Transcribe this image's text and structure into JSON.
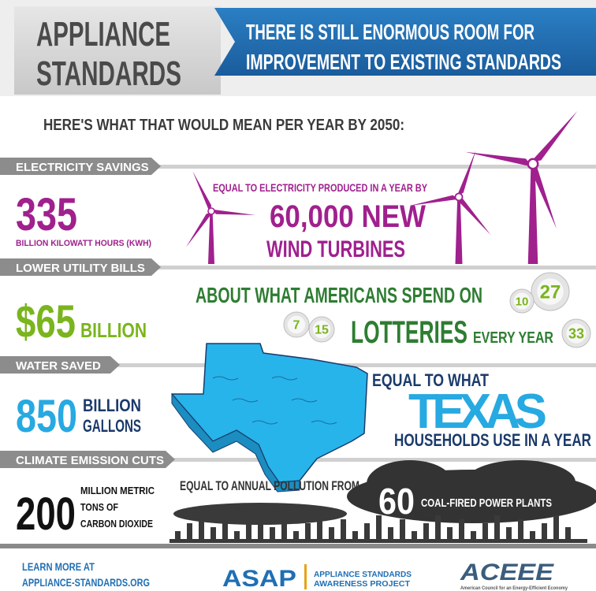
{
  "header": {
    "title_lines": [
      "APPLIANCE",
      "STANDARDS"
    ],
    "banner_lines": [
      "THERE IS STILL ENORMOUS ROOM FOR",
      "IMPROVEMENT TO EXISTING STANDARDS"
    ]
  },
  "intro": "HERE'S WHAT THAT WOULD MEAN PER YEAR BY 2050:",
  "sections": [
    {
      "label": "ELECTRICITY SAVINGS",
      "amount": "335",
      "unit": [
        "BILLION KILOWATT HOURS (KWH)"
      ],
      "comparison": [
        "EQUAL TO ELECTRICITY PRODUCED IN A YEAR BY",
        "60,000 NEW",
        "WIND TURBINES"
      ]
    },
    {
      "label": "LOWER UTILITY BILLS",
      "amount": "$65",
      "unit": [
        "BILLION"
      ],
      "comparison": [
        "ABOUT WHAT AMERICANS SPEND ON",
        "LOTTERIES",
        "EVERY YEAR"
      ],
      "balls": [
        "27",
        "10",
        "7",
        "15",
        "33"
      ]
    },
    {
      "label": "WATER SAVED",
      "amount": "850",
      "unit": [
        "BILLION",
        "GALLONS"
      ],
      "comparison": [
        "EQUAL TO WHAT",
        "TEXAS",
        "HOUSEHOLDS USE IN A YEAR"
      ]
    },
    {
      "label": "CLIMATE EMISSION CUTS",
      "amount": "200",
      "unit": [
        "MILLION METRIC",
        "TONS OF",
        "CARBON DIOXIDE"
      ],
      "comparison": [
        "EQUAL TO ANNUAL POLLUTION FROM",
        "60",
        "COAL-FIRED POWER PLANTS"
      ]
    }
  ],
  "footer": {
    "learn_more": [
      "LEARN MORE AT",
      "APPLIANCE-STANDARDS.ORG"
    ],
    "asap": "ASAP",
    "asap_name": [
      "APPLIANCE STANDARDS",
      "AWARENESS PROJECT"
    ],
    "aceee": "ACEEE",
    "aceee_name": "American Council for an Energy-Efficient Economy"
  }
}
